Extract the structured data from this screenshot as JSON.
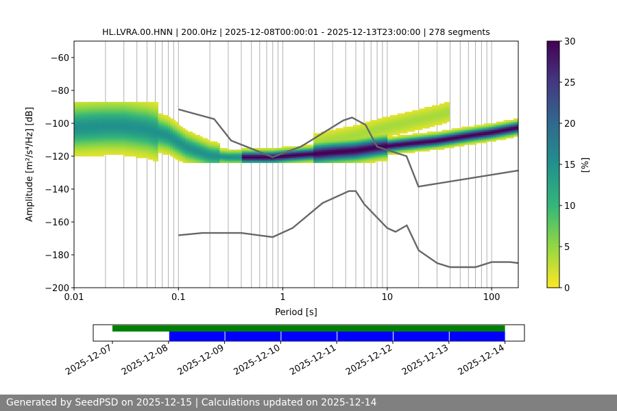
{
  "chart_data": [
    {
      "type": "heatmap",
      "title": "HL.LVRA.00.HNN | 200.0Hz | 2025-12-08T00:00:01 - 2025-12-13T23:00:00 | 278 segments",
      "xlabel": "Period [s]",
      "ylabel": "Amplitude [m²/s⁴/Hz] [dB]",
      "x_scale": "log",
      "xlim": [
        0.01,
        180
      ],
      "ylim": [
        -200,
        -50
      ],
      "x_ticks": [
        0.01,
        0.1,
        1,
        10,
        100
      ],
      "x_tick_labels": [
        "0.01",
        "0.1",
        "1",
        "10",
        "100"
      ],
      "y_ticks": [
        -200,
        -180,
        -160,
        -140,
        -120,
        -100,
        -80,
        -60
      ],
      "y_tick_labels": [
        "−200",
        "−180",
        "−160",
        "−140",
        "−120",
        "−100",
        "−80",
        "−60"
      ],
      "grid": "vertical-log",
      "colorbar": {
        "label": "[%]",
        "range": [
          0,
          30
        ],
        "ticks": [
          0,
          5,
          10,
          15,
          20,
          25,
          30
        ],
        "tick_labels": [
          "0",
          "5",
          "10",
          "15",
          "20",
          "25",
          "30"
        ],
        "colormap": [
          "#fde725",
          "#90d743",
          "#35b779",
          "#21918c",
          "#31688e",
          "#443983",
          "#440154"
        ]
      },
      "psd_mode_curve": [
        {
          "period": 0.01,
          "db": -103
        },
        {
          "period": 0.02,
          "db": -102
        },
        {
          "period": 0.03,
          "db": -102
        },
        {
          "period": 0.05,
          "db": -104
        },
        {
          "period": 0.08,
          "db": -108
        },
        {
          "period": 0.12,
          "db": -115
        },
        {
          "period": 0.2,
          "db": -120
        },
        {
          "period": 0.3,
          "db": -121
        },
        {
          "period": 0.5,
          "db": -121
        },
        {
          "period": 0.8,
          "db": -121
        },
        {
          "period": 1.2,
          "db": -120
        },
        {
          "period": 2,
          "db": -119
        },
        {
          "period": 3,
          "db": -118
        },
        {
          "period": 5,
          "db": -117
        },
        {
          "period": 8,
          "db": -115
        },
        {
          "period": 15,
          "db": -113
        },
        {
          "period": 30,
          "db": -111
        },
        {
          "period": 60,
          "db": -108
        },
        {
          "period": 100,
          "db": -106
        },
        {
          "period": 180,
          "db": -103
        }
      ],
      "series": [
        {
          "x": [
            0.1,
            0.22,
            0.32,
            0.8,
            1.5,
            3.8,
            4.6,
            6.2,
            8.0,
            15.3,
            19.9,
            180
          ],
          "y": [
            -91.5,
            -97.4,
            -110.5,
            -120.6,
            -114.1,
            -98.2,
            -96.5,
            -100.9,
            -114.3,
            -120.0,
            -138.5,
            -128.7
          ]
        },
        {
          "x": [
            0.1,
            0.17,
            0.22,
            0.4,
            0.8,
            1.24,
            2.4,
            4.3,
            5.0,
            6.0,
            10.0,
            12.0,
            15.4,
            20.0,
            30.0,
            40.0,
            70.0,
            100.0,
            150.0,
            180.0
          ],
          "y": [
            -168.1,
            -166.7,
            -166.7,
            -166.7,
            -169.2,
            -163.7,
            -148.5,
            -141.2,
            -141.2,
            -149.1,
            -163.7,
            -166.0,
            -162.1,
            -177.3,
            -185.0,
            -187.5,
            -187.5,
            -184.4,
            -184.4,
            -185.0
          ]
        }
      ]
    },
    {
      "type": "timeline",
      "x_tick_labels": [
        "2025-12-07",
        "2025-12-08",
        "2025-12-09",
        "2025-12-10",
        "2025-12-11",
        "2025-12-12",
        "2025-12-13",
        "2025-12-14"
      ],
      "tracks": [
        {
          "color": "#008000",
          "segments": [
            [
              "2025-12-07",
              "2025-12-14"
            ]
          ]
        },
        {
          "color": "#0000ff",
          "segments": [
            [
              "2025-12-08",
              "2025-12-09"
            ],
            [
              "2025-12-09",
              "2025-12-10"
            ],
            [
              "2025-12-10",
              "2025-12-11"
            ],
            [
              "2025-12-11",
              "2025-12-12"
            ],
            [
              "2025-12-12",
              "2025-12-13"
            ],
            [
              "2025-12-13",
              "2025-12-14"
            ]
          ]
        }
      ]
    }
  ],
  "footer": {
    "text": "Generated by SeedPSD on 2025-12-15 | Calculations updated on 2025-12-14"
  },
  "colors": {
    "noise_model": "#666666",
    "footer_bg": "#808080",
    "grid": "#b0b0b0"
  }
}
